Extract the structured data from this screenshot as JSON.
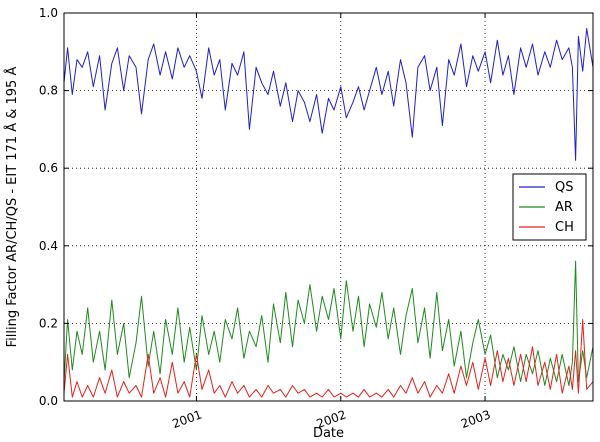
{
  "chart_data": {
    "type": "line",
    "xlabel": "Date",
    "ylabel": "Filling Factor AR/CH/QS - EIT 171 Å & 195 Å",
    "x_range": [
      "2000-02-01",
      "2003-10-01"
    ],
    "ylim": [
      0.0,
      1.0
    ],
    "y_ticks": [
      "0.0",
      "0.2",
      "0.4",
      "0.6",
      "0.8",
      "1.0"
    ],
    "x_ticks": [
      {
        "date": "2001-01-01",
        "label": "2001"
      },
      {
        "date": "2002-01-01",
        "label": "2002"
      },
      {
        "date": "2003-01-01",
        "label": "2003"
      }
    ],
    "grid": true,
    "legend": {
      "position": "right",
      "entries": [
        "QS",
        "AR",
        "CH"
      ]
    },
    "colors": {
      "QS": "#1f1fcf",
      "AR": "#1f8a1f",
      "CH": "#e8201c"
    },
    "series": [
      {
        "name": "QS",
        "color": "#1f1fcf",
        "points": [
          [
            "2000-02-01",
            0.82
          ],
          [
            "2000-02-10",
            0.91
          ],
          [
            "2000-02-22",
            0.79
          ],
          [
            "2000-03-05",
            0.88
          ],
          [
            "2000-03-18",
            0.86
          ],
          [
            "2000-04-01",
            0.9
          ],
          [
            "2000-04-15",
            0.81
          ],
          [
            "2000-05-01",
            0.89
          ],
          [
            "2000-05-15",
            0.75
          ],
          [
            "2000-06-01",
            0.87
          ],
          [
            "2000-06-15",
            0.91
          ],
          [
            "2000-07-01",
            0.8
          ],
          [
            "2000-07-15",
            0.89
          ],
          [
            "2000-08-01",
            0.86
          ],
          [
            "2000-08-15",
            0.74
          ],
          [
            "2000-09-01",
            0.88
          ],
          [
            "2000-09-15",
            0.92
          ],
          [
            "2000-10-01",
            0.84
          ],
          [
            "2000-10-15",
            0.9
          ],
          [
            "2000-11-01",
            0.83
          ],
          [
            "2000-11-15",
            0.91
          ],
          [
            "2000-12-01",
            0.86
          ],
          [
            "2000-12-15",
            0.89
          ],
          [
            "2001-01-01",
            0.85
          ],
          [
            "2001-01-15",
            0.78
          ],
          [
            "2001-02-01",
            0.91
          ],
          [
            "2001-02-15",
            0.84
          ],
          [
            "2001-03-01",
            0.88
          ],
          [
            "2001-03-15",
            0.75
          ],
          [
            "2001-04-01",
            0.87
          ],
          [
            "2001-04-15",
            0.84
          ],
          [
            "2001-05-01",
            0.9
          ],
          [
            "2001-05-15",
            0.7
          ],
          [
            "2001-06-01",
            0.86
          ],
          [
            "2001-06-15",
            0.82
          ],
          [
            "2001-07-01",
            0.79
          ],
          [
            "2001-07-15",
            0.85
          ],
          [
            "2001-08-01",
            0.76
          ],
          [
            "2001-08-15",
            0.82
          ],
          [
            "2001-09-01",
            0.72
          ],
          [
            "2001-09-15",
            0.8
          ],
          [
            "2001-10-01",
            0.77
          ],
          [
            "2001-10-15",
            0.72
          ],
          [
            "2001-11-01",
            0.79
          ],
          [
            "2001-11-15",
            0.69
          ],
          [
            "2001-12-01",
            0.78
          ],
          [
            "2001-12-15",
            0.75
          ],
          [
            "2002-01-01",
            0.81
          ],
          [
            "2002-01-15",
            0.73
          ],
          [
            "2002-02-01",
            0.77
          ],
          [
            "2002-02-15",
            0.81
          ],
          [
            "2002-03-01",
            0.75
          ],
          [
            "2002-03-15",
            0.8
          ],
          [
            "2002-04-01",
            0.86
          ],
          [
            "2002-04-15",
            0.79
          ],
          [
            "2002-05-01",
            0.85
          ],
          [
            "2002-05-15",
            0.76
          ],
          [
            "2002-06-01",
            0.88
          ],
          [
            "2002-06-15",
            0.82
          ],
          [
            "2002-07-01",
            0.68
          ],
          [
            "2002-07-15",
            0.86
          ],
          [
            "2002-08-01",
            0.89
          ],
          [
            "2002-08-15",
            0.8
          ],
          [
            "2002-09-01",
            0.86
          ],
          [
            "2002-09-15",
            0.71
          ],
          [
            "2002-10-01",
            0.88
          ],
          [
            "2002-10-15",
            0.84
          ],
          [
            "2002-11-01",
            0.92
          ],
          [
            "2002-11-15",
            0.81
          ],
          [
            "2002-12-01",
            0.89
          ],
          [
            "2002-12-15",
            0.85
          ],
          [
            "2003-01-01",
            0.9
          ],
          [
            "2003-01-15",
            0.82
          ],
          [
            "2003-02-01",
            0.93
          ],
          [
            "2003-02-15",
            0.84
          ],
          [
            "2003-03-01",
            0.89
          ],
          [
            "2003-03-15",
            0.79
          ],
          [
            "2003-04-01",
            0.91
          ],
          [
            "2003-04-15",
            0.86
          ],
          [
            "2003-05-01",
            0.92
          ],
          [
            "2003-05-15",
            0.84
          ],
          [
            "2003-06-01",
            0.9
          ],
          [
            "2003-06-15",
            0.86
          ],
          [
            "2003-07-01",
            0.93
          ],
          [
            "2003-07-15",
            0.88
          ],
          [
            "2003-08-01",
            0.91
          ],
          [
            "2003-08-10",
            0.86
          ],
          [
            "2003-08-18",
            0.62
          ],
          [
            "2003-08-25",
            0.94
          ],
          [
            "2003-09-05",
            0.85
          ],
          [
            "2003-09-15",
            0.96
          ],
          [
            "2003-10-01",
            0.86
          ]
        ]
      },
      {
        "name": "AR",
        "color": "#1f8a1f",
        "points": [
          [
            "2000-02-01",
            0.05
          ],
          [
            "2000-02-10",
            0.21
          ],
          [
            "2000-02-22",
            0.08
          ],
          [
            "2000-03-05",
            0.18
          ],
          [
            "2000-03-18",
            0.12
          ],
          [
            "2000-04-01",
            0.24
          ],
          [
            "2000-04-15",
            0.1
          ],
          [
            "2000-05-01",
            0.18
          ],
          [
            "2000-05-15",
            0.08
          ],
          [
            "2000-06-01",
            0.26
          ],
          [
            "2000-06-15",
            0.12
          ],
          [
            "2000-07-01",
            0.2
          ],
          [
            "2000-07-15",
            0.06
          ],
          [
            "2000-08-01",
            0.15
          ],
          [
            "2000-08-15",
            0.27
          ],
          [
            "2000-09-01",
            0.09
          ],
          [
            "2000-09-15",
            0.18
          ],
          [
            "2000-10-01",
            0.07
          ],
          [
            "2000-10-15",
            0.21
          ],
          [
            "2000-11-01",
            0.12
          ],
          [
            "2000-11-15",
            0.24
          ],
          [
            "2000-12-01",
            0.1
          ],
          [
            "2000-12-15",
            0.19
          ],
          [
            "2001-01-01",
            0.08
          ],
          [
            "2001-01-15",
            0.22
          ],
          [
            "2001-02-01",
            0.12
          ],
          [
            "2001-02-15",
            0.18
          ],
          [
            "2001-03-01",
            0.1
          ],
          [
            "2001-03-15",
            0.21
          ],
          [
            "2001-04-01",
            0.16
          ],
          [
            "2001-04-15",
            0.24
          ],
          [
            "2001-05-01",
            0.11
          ],
          [
            "2001-05-15",
            0.18
          ],
          [
            "2001-06-01",
            0.14
          ],
          [
            "2001-06-15",
            0.22
          ],
          [
            "2001-07-01",
            0.1
          ],
          [
            "2001-07-15",
            0.25
          ],
          [
            "2001-08-01",
            0.15
          ],
          [
            "2001-08-15",
            0.28
          ],
          [
            "2001-09-01",
            0.14
          ],
          [
            "2001-09-15",
            0.26
          ],
          [
            "2001-10-01",
            0.2
          ],
          [
            "2001-10-15",
            0.3
          ],
          [
            "2001-11-01",
            0.18
          ],
          [
            "2001-11-15",
            0.27
          ],
          [
            "2001-12-01",
            0.21
          ],
          [
            "2001-12-15",
            0.29
          ],
          [
            "2002-01-01",
            0.16
          ],
          [
            "2002-01-15",
            0.31
          ],
          [
            "2002-02-01",
            0.18
          ],
          [
            "2002-02-15",
            0.27
          ],
          [
            "2002-03-01",
            0.14
          ],
          [
            "2002-03-15",
            0.25
          ],
          [
            "2002-04-01",
            0.19
          ],
          [
            "2002-04-15",
            0.28
          ],
          [
            "2002-05-01",
            0.16
          ],
          [
            "2002-05-15",
            0.24
          ],
          [
            "2002-06-01",
            0.12
          ],
          [
            "2002-06-15",
            0.22
          ],
          [
            "2002-07-01",
            0.29
          ],
          [
            "2002-07-15",
            0.15
          ],
          [
            "2002-08-01",
            0.24
          ],
          [
            "2002-08-15",
            0.11
          ],
          [
            "2002-09-01",
            0.28
          ],
          [
            "2002-09-15",
            0.13
          ],
          [
            "2002-10-01",
            0.21
          ],
          [
            "2002-10-15",
            0.09
          ],
          [
            "2002-11-01",
            0.18
          ],
          [
            "2002-11-15",
            0.06
          ],
          [
            "2002-12-01",
            0.15
          ],
          [
            "2002-12-15",
            0.21
          ],
          [
            "2003-01-01",
            0.12
          ],
          [
            "2003-01-15",
            0.17
          ],
          [
            "2003-02-01",
            0.06
          ],
          [
            "2003-02-15",
            0.12
          ],
          [
            "2003-03-01",
            0.08
          ],
          [
            "2003-03-15",
            0.14
          ],
          [
            "2003-04-01",
            0.05
          ],
          [
            "2003-04-15",
            0.12
          ],
          [
            "2003-05-01",
            0.07
          ],
          [
            "2003-05-15",
            0.13
          ],
          [
            "2003-06-01",
            0.04
          ],
          [
            "2003-06-15",
            0.11
          ],
          [
            "2003-07-01",
            0.05
          ],
          [
            "2003-07-15",
            0.12
          ],
          [
            "2003-08-01",
            0.04
          ],
          [
            "2003-08-10",
            0.1
          ],
          [
            "2003-08-18",
            0.36
          ],
          [
            "2003-08-25",
            0.05
          ],
          [
            "2003-09-05",
            0.13
          ],
          [
            "2003-09-15",
            0.06
          ],
          [
            "2003-10-01",
            0.14
          ]
        ]
      },
      {
        "name": "CH",
        "color": "#e8201c",
        "points": [
          [
            "2000-02-01",
            0.02
          ],
          [
            "2000-02-10",
            0.12
          ],
          [
            "2000-02-22",
            0.01
          ],
          [
            "2000-03-05",
            0.05
          ],
          [
            "2000-03-18",
            0.01
          ],
          [
            "2000-04-01",
            0.04
          ],
          [
            "2000-04-15",
            0.01
          ],
          [
            "2000-05-01",
            0.06
          ],
          [
            "2000-05-15",
            0.02
          ],
          [
            "2000-06-01",
            0.08
          ],
          [
            "2000-06-15",
            0.01
          ],
          [
            "2000-07-01",
            0.05
          ],
          [
            "2000-07-15",
            0.02
          ],
          [
            "2000-08-01",
            0.04
          ],
          [
            "2000-08-15",
            0.01
          ],
          [
            "2000-09-01",
            0.12
          ],
          [
            "2000-09-15",
            0.02
          ],
          [
            "2000-10-01",
            0.06
          ],
          [
            "2000-10-15",
            0.01
          ],
          [
            "2000-11-01",
            0.1
          ],
          [
            "2000-11-15",
            0.02
          ],
          [
            "2000-12-01",
            0.05
          ],
          [
            "2000-12-15",
            0.01
          ],
          [
            "2001-01-01",
            0.12
          ],
          [
            "2001-01-15",
            0.03
          ],
          [
            "2001-02-01",
            0.08
          ],
          [
            "2001-02-15",
            0.02
          ],
          [
            "2001-03-01",
            0.04
          ],
          [
            "2001-03-15",
            0.01
          ],
          [
            "2001-04-01",
            0.05
          ],
          [
            "2001-04-15",
            0.02
          ],
          [
            "2001-05-01",
            0.04
          ],
          [
            "2001-05-15",
            0.01
          ],
          [
            "2001-06-01",
            0.03
          ],
          [
            "2001-06-15",
            0.01
          ],
          [
            "2001-07-01",
            0.04
          ],
          [
            "2001-07-15",
            0.02
          ],
          [
            "2001-08-01",
            0.03
          ],
          [
            "2001-08-15",
            0.01
          ],
          [
            "2001-09-01",
            0.04
          ],
          [
            "2001-09-15",
            0.02
          ],
          [
            "2001-10-01",
            0.03
          ],
          [
            "2001-10-15",
            0.01
          ],
          [
            "2001-11-01",
            0.02
          ],
          [
            "2001-11-15",
            0.01
          ],
          [
            "2001-12-01",
            0.03
          ],
          [
            "2001-12-15",
            0.01
          ],
          [
            "2002-01-01",
            0.02
          ],
          [
            "2002-01-15",
            0.01
          ],
          [
            "2002-02-01",
            0.02
          ],
          [
            "2002-02-15",
            0.01
          ],
          [
            "2002-03-01",
            0.03
          ],
          [
            "2002-03-15",
            0.01
          ],
          [
            "2002-04-01",
            0.02
          ],
          [
            "2002-04-15",
            0.01
          ],
          [
            "2002-05-01",
            0.03
          ],
          [
            "2002-05-15",
            0.01
          ],
          [
            "2002-06-01",
            0.04
          ],
          [
            "2002-06-15",
            0.02
          ],
          [
            "2002-07-01",
            0.06
          ],
          [
            "2002-07-15",
            0.02
          ],
          [
            "2002-08-01",
            0.05
          ],
          [
            "2002-08-15",
            0.01
          ],
          [
            "2002-09-01",
            0.04
          ],
          [
            "2002-09-15",
            0.02
          ],
          [
            "2002-10-01",
            0.07
          ],
          [
            "2002-10-15",
            0.02
          ],
          [
            "2002-11-01",
            0.09
          ],
          [
            "2002-11-15",
            0.04
          ],
          [
            "2002-12-01",
            0.1
          ],
          [
            "2002-12-15",
            0.03
          ],
          [
            "2003-01-01",
            0.11
          ],
          [
            "2003-01-15",
            0.04
          ],
          [
            "2003-02-01",
            0.13
          ],
          [
            "2003-02-15",
            0.05
          ],
          [
            "2003-03-01",
            0.11
          ],
          [
            "2003-03-15",
            0.04
          ],
          [
            "2003-04-01",
            0.12
          ],
          [
            "2003-04-15",
            0.05
          ],
          [
            "2003-05-01",
            0.14
          ],
          [
            "2003-05-15",
            0.04
          ],
          [
            "2003-06-01",
            0.1
          ],
          [
            "2003-06-15",
            0.03
          ],
          [
            "2003-07-01",
            0.12
          ],
          [
            "2003-07-15",
            0.02
          ],
          [
            "2003-08-01",
            0.09
          ],
          [
            "2003-08-10",
            0.03
          ],
          [
            "2003-08-18",
            0.13
          ],
          [
            "2003-08-25",
            0.02
          ],
          [
            "2003-09-05",
            0.21
          ],
          [
            "2003-09-15",
            0.03
          ],
          [
            "2003-10-01",
            0.05
          ]
        ]
      }
    ]
  }
}
